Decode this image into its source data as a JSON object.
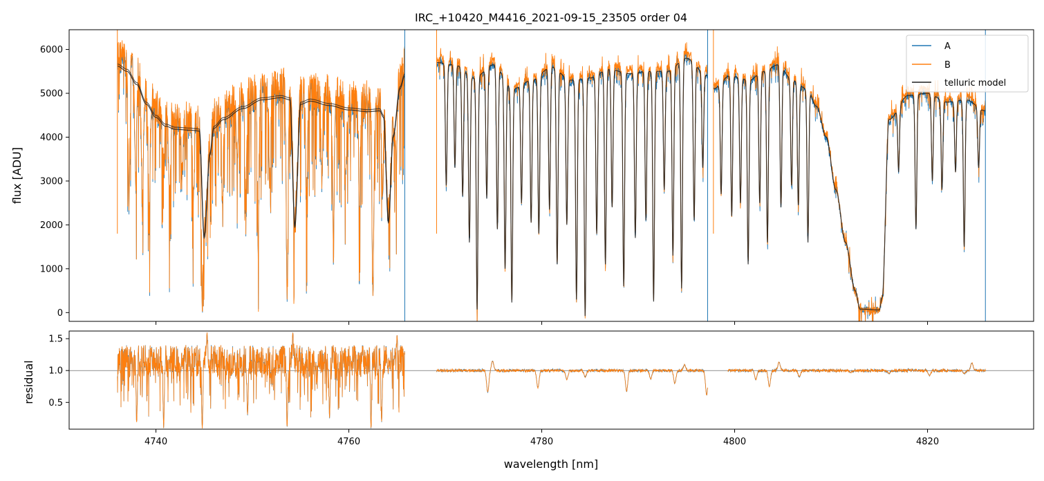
{
  "chart_data": {
    "title": "IRC_+10420_M4416_2021-09-15_23505  order 04",
    "xlabel": "wavelength [nm]",
    "xlim": [
      4731,
      4831
    ],
    "xticks": [
      4740,
      4760,
      4780,
      4800,
      4820
    ],
    "colors": {
      "A": "#1f77b4",
      "B": "#ff7f0e",
      "model": "#1f1f1f"
    },
    "panels": [
      {
        "name": "flux",
        "type": "line",
        "ylabel": "flux [ADU]",
        "ylim": [
          -200,
          6450
        ],
        "yticks": [
          0,
          1000,
          2000,
          3000,
          4000,
          5000,
          6000
        ],
        "legend": {
          "position": "top-right",
          "entries": [
            {
              "key": "A",
              "label": "A"
            },
            {
              "key": "B",
              "label": "B"
            },
            {
              "key": "model",
              "label": "telluric model"
            }
          ]
        },
        "segments": [
          {
            "range": [
              4736.0,
              4765.8
            ],
            "model_anchors": [
              [
                4736.0,
                5620
              ],
              [
                4737.0,
                5500
              ],
              [
                4738.0,
                5200
              ],
              [
                4739.0,
                4750
              ],
              [
                4740.0,
                4450
              ],
              [
                4741.0,
                4250
              ],
              [
                4742.0,
                4180
              ],
              [
                4743.5,
                4160
              ],
              [
                4744.5,
                4140
              ],
              [
                4745.0,
                1700
              ],
              [
                4745.6,
                3600
              ],
              [
                4746.0,
                4200
              ],
              [
                4747.0,
                4400
              ],
              [
                4749.0,
                4650
              ],
              [
                4751.0,
                4850
              ],
              [
                4753.0,
                4900
              ],
              [
                4753.9,
                4850
              ],
              [
                4754.4,
                1950
              ],
              [
                4755.0,
                4750
              ],
              [
                4756.0,
                4820
              ],
              [
                4758.0,
                4720
              ],
              [
                4760.0,
                4620
              ],
              [
                4762.0,
                4580
              ],
              [
                4763.2,
                4600
              ],
              [
                4763.6,
                4450
              ],
              [
                4764.1,
                2050
              ],
              [
                4764.6,
                4000
              ],
              [
                4765.3,
                5100
              ],
              [
                4765.8,
                5400
              ]
            ],
            "dips": [
              [
                4737.2,
                2500
              ],
              [
                4737.9,
                2700
              ],
              [
                4738.6,
                2200
              ],
              [
                4739.3,
                1900
              ],
              [
                4740.8,
                3100
              ],
              [
                4741.4,
                2300
              ],
              [
                4742.7,
                2800
              ],
              [
                4743.9,
                2600
              ],
              [
                4744.8,
                120
              ],
              [
                4746.9,
                2100
              ],
              [
                4748.4,
                3300
              ],
              [
                4749.3,
                2200
              ],
              [
                4750.6,
                1600
              ],
              [
                4751.8,
                2700
              ],
              [
                4753.6,
                170
              ],
              [
                4755.6,
                2500
              ],
              [
                4757.2,
                2900
              ],
              [
                4758.4,
                1800
              ],
              [
                4759.7,
                3000
              ],
              [
                4761.1,
                2200
              ],
              [
                4762.5,
                230
              ],
              [
                4763.5,
                2600
              ],
              [
                4764.9,
                3300
              ]
            ]
          },
          {
            "range": [
              4769.1,
              4797.2
            ],
            "model_anchors": [
              [
                4769.1,
                5700
              ],
              [
                4771.0,
                5650
              ],
              [
                4773.0,
                5350
              ],
              [
                4775.0,
                5650
              ],
              [
                4777.0,
                5100
              ],
              [
                4779.0,
                5300
              ],
              [
                4781.0,
                5600
              ],
              [
                4783.0,
                5300
              ],
              [
                4785.0,
                5350
              ],
              [
                4787.0,
                5550
              ],
              [
                4789.0,
                5450
              ],
              [
                4791.0,
                5500
              ],
              [
                4793.0,
                5500
              ],
              [
                4795.0,
                5800
              ],
              [
                4797.2,
                5400
              ]
            ],
            "dips": [
              [
                4770.1,
                2900
              ],
              [
                4771.0,
                3300
              ],
              [
                4771.8,
                2650
              ],
              [
                4772.5,
                1600
              ],
              [
                4773.3,
                70
              ],
              [
                4774.3,
                2600
              ],
              [
                4775.4,
                1900
              ],
              [
                4776.2,
                1000
              ],
              [
                4776.9,
                230
              ],
              [
                4777.9,
                2500
              ],
              [
                4778.9,
                2050
              ],
              [
                4779.7,
                1800
              ],
              [
                4780.8,
                2350
              ],
              [
                4781.6,
                1100
              ],
              [
                4782.6,
                2000
              ],
              [
                4783.6,
                300
              ],
              [
                4784.5,
                -80
              ],
              [
                4785.7,
                1800
              ],
              [
                4786.6,
                1100
              ],
              [
                4787.3,
                2400
              ],
              [
                4788.5,
                600
              ],
              [
                4789.7,
                1700
              ],
              [
                4790.8,
                2100
              ],
              [
                4791.6,
                250
              ],
              [
                4792.7,
                2800
              ],
              [
                4793.6,
                1300
              ],
              [
                4794.5,
                550
              ],
              [
                4795.8,
                2100
              ],
              [
                4796.7,
                3300
              ]
            ]
          },
          {
            "range": [
              4797.8,
              4826.0
            ],
            "model_anchors": [
              [
                4797.8,
                5100
              ],
              [
                4799.5,
                5400
              ],
              [
                4801.5,
                5300
              ],
              [
                4803.0,
                5500
              ],
              [
                4804.5,
                5650
              ],
              [
                4806.0,
                5300
              ],
              [
                4807.5,
                5100
              ],
              [
                4808.5,
                4700
              ],
              [
                4809.5,
                4000
              ],
              [
                4810.5,
                2800
              ],
              [
                4811.5,
                1600
              ],
              [
                4812.5,
                500
              ],
              [
                4813.0,
                80
              ],
              [
                4815.0,
                60
              ],
              [
                4815.3,
                350
              ],
              [
                4816.0,
                4400
              ],
              [
                4818.0,
                4950
              ],
              [
                4820.0,
                5000
              ],
              [
                4822.0,
                4800
              ],
              [
                4824.0,
                4850
              ],
              [
                4826.0,
                4600
              ]
            ],
            "dips": [
              [
                4798.6,
                2700
              ],
              [
                4799.7,
                2200
              ],
              [
                4800.6,
                2500
              ],
              [
                4801.4,
                1100
              ],
              [
                4802.6,
                2500
              ],
              [
                4803.4,
                1600
              ],
              [
                4804.8,
                2400
              ],
              [
                4805.9,
                2900
              ],
              [
                4806.6,
                2450
              ],
              [
                4807.6,
                1600
              ],
              [
                4817.0,
                3200
              ],
              [
                4818.8,
                1900
              ],
              [
                4820.5,
                3000
              ],
              [
                4821.5,
                2800
              ],
              [
                4822.9,
                3200
              ],
              [
                4823.8,
                1500
              ],
              [
                4825.3,
                3300
              ]
            ]
          }
        ]
      },
      {
        "name": "residual",
        "type": "line",
        "ylabel": "residual",
        "ylim": [
          0.08,
          1.62
        ],
        "yticks": [
          0.5,
          1.0,
          1.5
        ],
        "hline": 1.0,
        "segments": [
          {
            "range": [
              4736.0,
              4765.8
            ],
            "profile": "noisy",
            "dips": [
              [
                4738.0,
                0.2
              ],
              [
                4740.8,
                0.1
              ],
              [
                4744.8,
                0.1
              ],
              [
                4745.3,
                1.6
              ],
              [
                4749.5,
                0.3
              ],
              [
                4753.6,
                0.12
              ],
              [
                4754.2,
                1.6
              ],
              [
                4758.0,
                0.25
              ],
              [
                4762.3,
                0.1
              ],
              [
                4763.4,
                0.2
              ],
              [
                4765.0,
                1.55
              ]
            ]
          },
          {
            "range": [
              4769.1,
              4797.2
            ],
            "profile": "flat",
            "dips": [
              [
                4774.4,
                0.66
              ],
              [
                4774.9,
                1.15
              ],
              [
                4779.6,
                0.73
              ],
              [
                4782.6,
                0.86
              ],
              [
                4784.5,
                0.9
              ],
              [
                4788.8,
                0.68
              ],
              [
                4791.3,
                0.87
              ],
              [
                4793.8,
                0.8
              ],
              [
                4794.8,
                1.09
              ],
              [
                4797.1,
                0.62
              ]
            ]
          },
          {
            "range": [
              4799.3,
              4826.0
            ],
            "profile": "flat",
            "dips": [
              [
                4802.2,
                0.86
              ],
              [
                4803.6,
                0.75
              ],
              [
                4804.6,
                1.13
              ],
              [
                4806.7,
                0.9
              ],
              [
                4812.0,
                0.97
              ],
              [
                4816.0,
                0.95
              ],
              [
                4820.2,
                0.92
              ],
              [
                4823.8,
                0.95
              ],
              [
                4824.6,
                1.12
              ]
            ]
          }
        ]
      }
    ]
  }
}
